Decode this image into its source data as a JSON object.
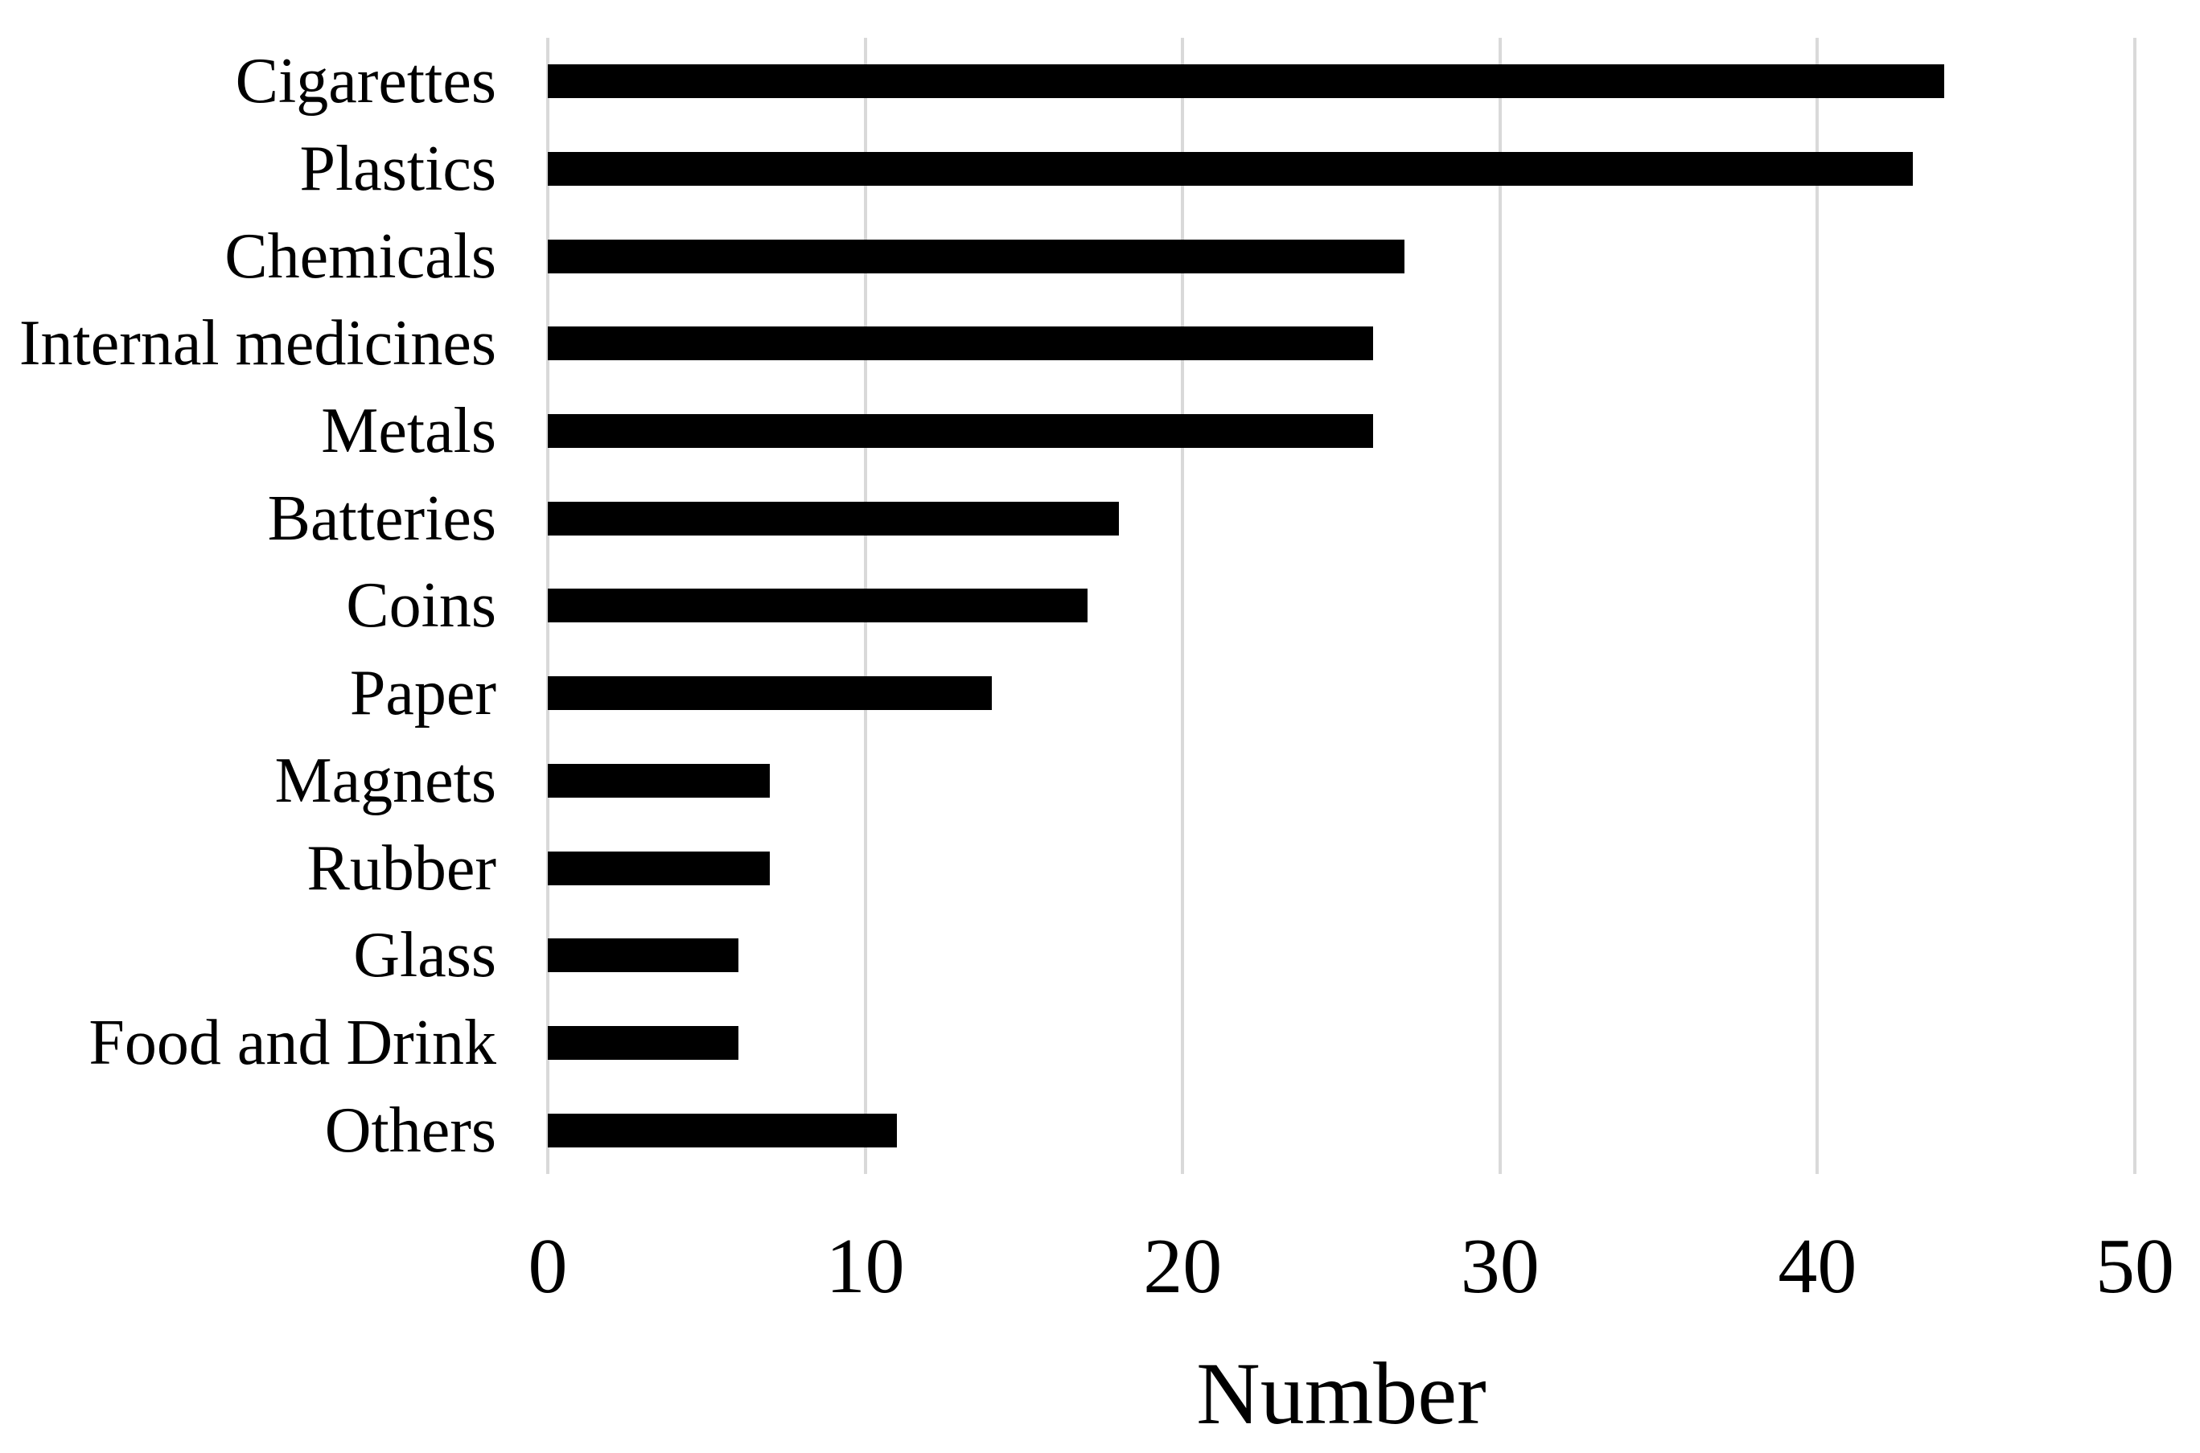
{
  "chart_data": {
    "type": "bar",
    "orientation": "horizontal",
    "title": "",
    "xlabel": "Number",
    "ylabel": "",
    "categories": [
      "Cigarettes",
      "Plastics",
      "Chemicals",
      "Internal medicines",
      "Metals",
      "Batteries",
      "Coins",
      "Paper",
      "Magnets",
      "Rubber",
      "Glass",
      "Food and Drink",
      "Others"
    ],
    "values": [
      44,
      43,
      27,
      26,
      26,
      18,
      17,
      14,
      7,
      7,
      6,
      6,
      11
    ],
    "xlim": [
      0,
      50
    ],
    "xticks": [
      0,
      10,
      20,
      30,
      40,
      50
    ],
    "grid": "vertical-only",
    "legend": "none",
    "colors": {
      "bar": "#000000",
      "gridline": "#d9d9d9",
      "text": "#000000",
      "background": "#ffffff"
    }
  }
}
